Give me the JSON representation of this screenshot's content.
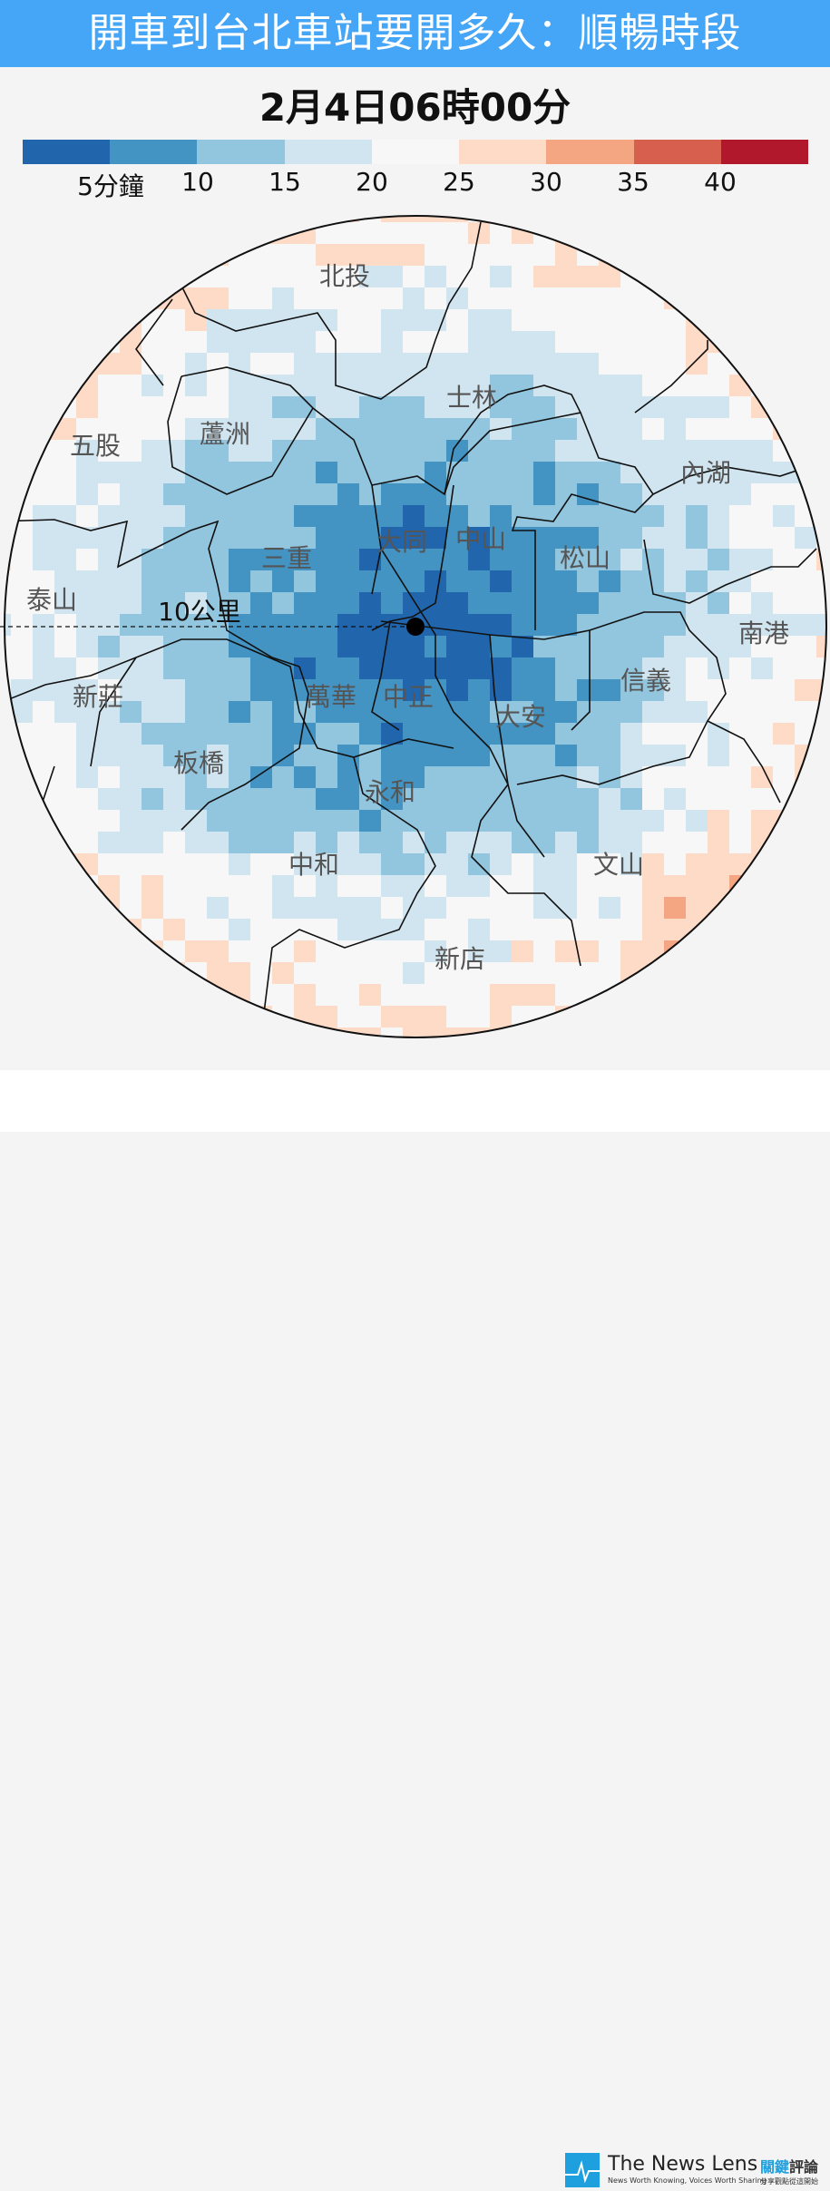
{
  "header": {
    "title": "開車到台北車站要開多久：順暢時段"
  },
  "datetime": "2月4日06時00分",
  "legend": {
    "colors": [
      "#2166ac",
      "#4393c3",
      "#92c5de",
      "#d1e5f0",
      "#f7f7f7",
      "#fddbc7",
      "#f4a582",
      "#d6604d",
      "#b2182b"
    ],
    "ticks": [
      "5分鐘",
      "10",
      "15",
      "20",
      "25",
      "30",
      "35",
      "40"
    ]
  },
  "map": {
    "scale_label": "10公里",
    "districts": [
      "北投",
      "士林",
      "蘆洲",
      "五股",
      "內湖",
      "大同",
      "中山",
      "三重",
      "松山",
      "泰山",
      "南港",
      "信義",
      "新莊",
      "萬華",
      "中正",
      "大安",
      "板橋",
      "永和",
      "中和",
      "文山",
      "新店"
    ]
  },
  "footer": {
    "brand": "The News Lens",
    "tagline": "News Worth Knowing, Voices Worth Sharing",
    "brand_cn_1": "關鍵",
    "brand_cn_2": "評論",
    "tagline_cn": "分享觀點從這開始"
  }
}
